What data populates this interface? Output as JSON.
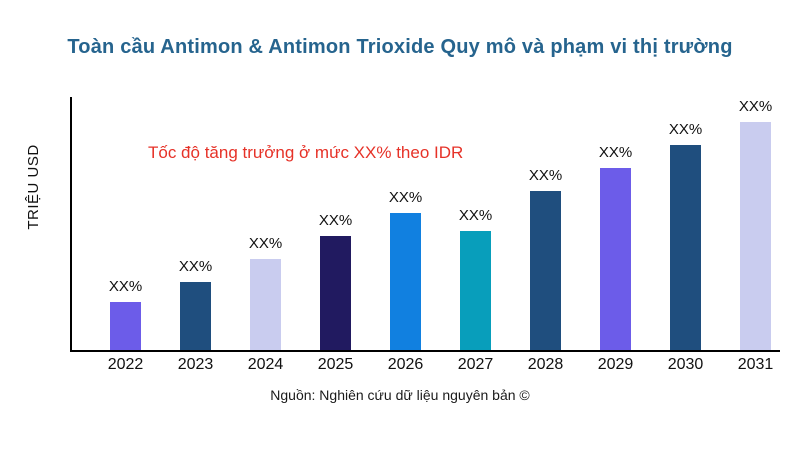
{
  "chart_data": {
    "type": "bar",
    "title": "Toàn cầu Antimon & Antimon Trioxide Quy mô và phạm vi thị trường",
    "title_color": "#26648E",
    "annotation": {
      "text": "Tốc độ tăng trưởng ở mức XX% theo IDR",
      "color": "#E63228"
    },
    "ylabel": "TRIỆU USD",
    "xlabel": "",
    "categories": [
      "2022",
      "2023",
      "2024",
      "2025",
      "2026",
      "2027",
      "2028",
      "2029",
      "2030",
      "2031"
    ],
    "values": [
      19,
      27,
      36,
      45,
      54,
      47,
      63,
      72,
      81,
      90
    ],
    "value_labels": [
      "XX%",
      "XX%",
      "XX%",
      "XX%",
      "XX%",
      "XX%",
      "XX%",
      "XX%",
      "XX%",
      "XX%"
    ],
    "bar_colors": [
      "#6C5CE9",
      "#1F4E7E",
      "#C9CCEF",
      "#211A60",
      "#1180E0",
      "#089EBB",
      "#1F4E7E",
      "#6C5CE9",
      "#1F4E7E",
      "#C9CCEF"
    ],
    "ylim": [
      0,
      100
    ],
    "y_axis_ticks": "none (axis unlabeled)",
    "grid": false,
    "legend": false,
    "axis_color": "#000000",
    "source": "Nguồn: Nghiên cứu dữ liệu nguyên bản ©"
  }
}
